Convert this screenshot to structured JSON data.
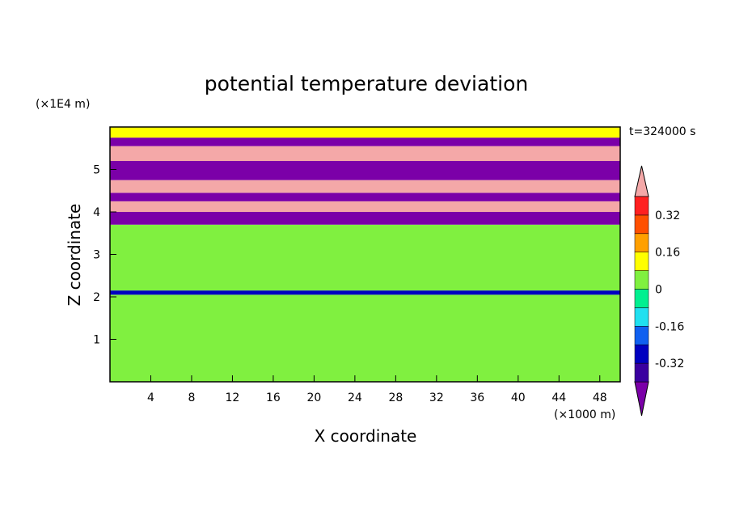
{
  "chart_data": {
    "type": "heatmap",
    "title": "potential temperature deviation",
    "xlabel": "X coordinate",
    "ylabel": "Z coordinate",
    "x_unit_label": "(×1000 m)",
    "y_unit_label": "(×1E4 m)",
    "time_label": "t=324000 s",
    "xlim": [
      0,
      50
    ],
    "ylim": [
      0,
      6
    ],
    "x_ticks": [
      "4",
      "8",
      "12",
      "16",
      "20",
      "24",
      "28",
      "32",
      "36",
      "40",
      "44",
      "48"
    ],
    "x_tick_values": [
      4,
      8,
      12,
      16,
      20,
      24,
      28,
      32,
      36,
      40,
      44,
      48
    ],
    "y_ticks": [
      "1",
      "2",
      "3",
      "4",
      "5"
    ],
    "y_tick_values": [
      1,
      2,
      3,
      4,
      5
    ],
    "colorbar": {
      "labels": [
        "0.32",
        "0.16",
        "0",
        "-0.16",
        "-0.32"
      ],
      "label_values": [
        0.32,
        0.16,
        0,
        -0.16,
        -0.32
      ],
      "levels": [
        -0.4,
        -0.32,
        -0.24,
        -0.16,
        -0.08,
        0,
        0.08,
        0.16,
        0.24,
        0.32,
        0.4
      ],
      "colors_low_to_high": [
        "#7b00a8",
        "#3a00a0",
        "#0000c0",
        "#1060f0",
        "#20e0f0",
        "#00f090",
        "#80f040",
        "#ffff00",
        "#ffa000",
        "#ff5000",
        "#ff2020",
        "#f4a8a8"
      ]
    },
    "field_bands": [
      {
        "z_from": 0.0,
        "z_to": 2.05,
        "value": 0.0
      },
      {
        "z_from": 2.05,
        "z_to": 2.15,
        "value": -0.3
      },
      {
        "z_from": 2.15,
        "z_to": 3.7,
        "value": 0.0
      },
      {
        "z_from": 3.7,
        "z_to": 4.0,
        "value": -0.45
      },
      {
        "z_from": 4.0,
        "z_to": 4.25,
        "value": 0.45
      },
      {
        "z_from": 4.25,
        "z_to": 4.45,
        "value": -0.45
      },
      {
        "z_from": 4.45,
        "z_to": 4.75,
        "value": 0.45
      },
      {
        "z_from": 4.75,
        "z_to": 5.2,
        "value": -0.45
      },
      {
        "z_from": 5.2,
        "z_to": 5.55,
        "value": 0.45
      },
      {
        "z_from": 5.55,
        "z_to": 5.75,
        "value": -0.45
      },
      {
        "z_from": 5.75,
        "z_to": 6.0,
        "value": 0.08
      }
    ]
  }
}
